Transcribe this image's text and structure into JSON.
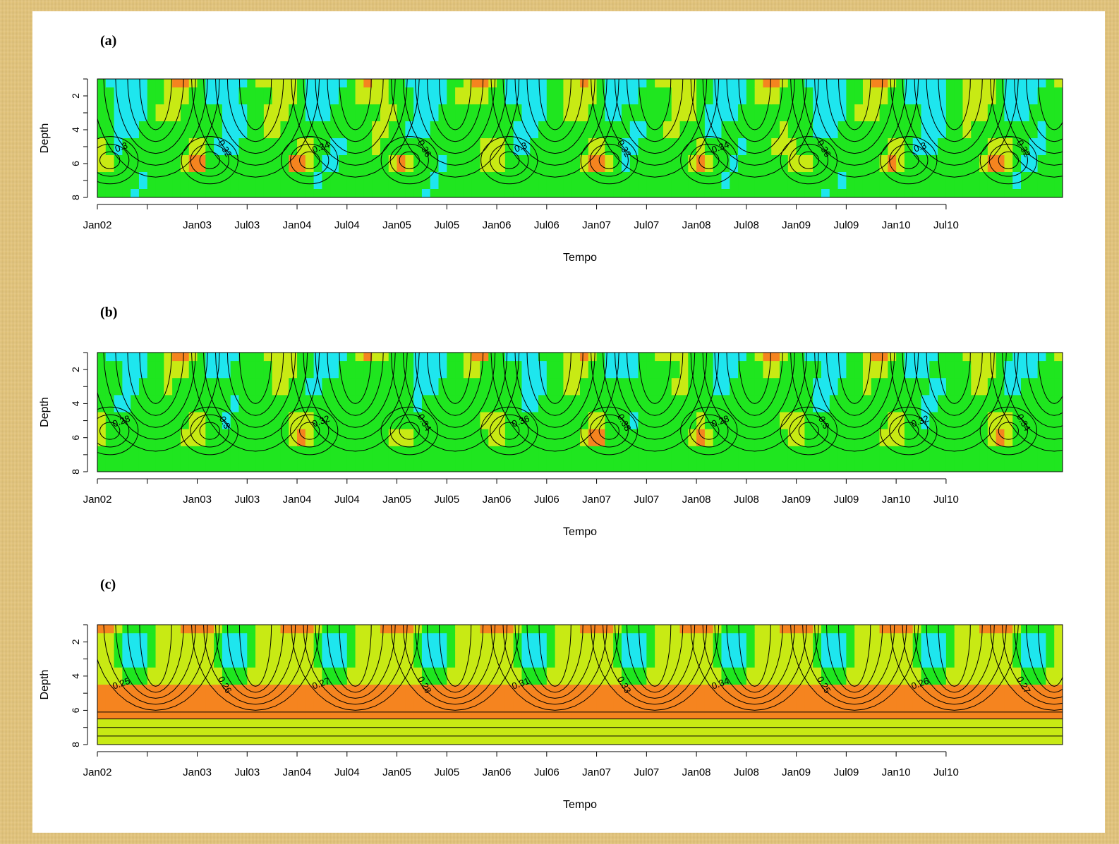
{
  "colors": {
    "frame_bg": "#e3c47a",
    "paper": "#ffffff"
  },
  "chart_data": [
    {
      "type": "heatmap",
      "panel": "(a)",
      "xlabel": "Tempo",
      "ylabel": "Depth",
      "x_ticks": [
        "Jan02",
        "Jan03",
        "Jul03",
        "Jan04",
        "Jul04",
        "Jan05",
        "Jul05",
        "Jan06",
        "Jul06",
        "Jan07",
        "Jul07",
        "Jan08",
        "Jul08",
        "Jan09",
        "Jul09",
        "Jan10",
        "Jul10"
      ],
      "x_tick_months": [
        0,
        12,
        18,
        24,
        30,
        36,
        42,
        48,
        54,
        60,
        66,
        72,
        78,
        84,
        90,
        96,
        102
      ],
      "unlabeled_tick_months": [
        6
      ],
      "xlim_months": [
        0,
        116
      ],
      "y_ticks": [
        2,
        4,
        6,
        8
      ],
      "ylim": [
        8,
        1
      ],
      "color_classes": [
        {
          "max": 0.3,
          "color": "#f5841f"
        },
        {
          "max": 0.32,
          "color": "#c8ea14"
        },
        {
          "max": 0.345,
          "color": "#1fe61f"
        },
        {
          "max": 1,
          "color": "#1ee6ee"
        }
      ],
      "contour_labels": [
        "0.3",
        "0.32",
        "0.34",
        "0.36"
      ],
      "cycle": {
        "base": 0.335,
        "amp_near_surface": 0.035,
        "anomaly_depth": 5.8,
        "anomaly_value": -0.045
      }
    },
    {
      "type": "heatmap",
      "panel": "(b)",
      "xlabel": "Tempo",
      "ylabel": "Depth",
      "x_ticks": [
        "Jan02",
        "Jan03",
        "Jul03",
        "Jan04",
        "Jul04",
        "Jan05",
        "Jul05",
        "Jan06",
        "Jul06",
        "Jan07",
        "Jul07",
        "Jan08",
        "Jul08",
        "Jan09",
        "Jul09",
        "Jan10",
        "Jul10"
      ],
      "x_tick_months": [
        0,
        12,
        18,
        24,
        30,
        36,
        42,
        48,
        54,
        60,
        66,
        72,
        78,
        84,
        90,
        96,
        102
      ],
      "unlabeled_tick_months": [
        6
      ],
      "xlim_months": [
        0,
        116
      ],
      "y_ticks": [
        2,
        4,
        6,
        8
      ],
      "ylim": [
        8,
        1
      ],
      "color_classes": [
        {
          "max": 0.295,
          "color": "#f5841f"
        },
        {
          "max": 0.31,
          "color": "#c8ea14"
        },
        {
          "max": 0.345,
          "color": "#1fe61f"
        },
        {
          "max": 1,
          "color": "#1ee6ee"
        }
      ],
      "contour_labels": [
        "0.28",
        "0.3",
        "0.32",
        "0.34",
        "0.36",
        "0.38"
      ],
      "cycle": {
        "base": 0.33,
        "amp_near_surface": 0.035,
        "anomaly_depth": 5.6,
        "anomaly_value": -0.045
      }
    },
    {
      "type": "heatmap",
      "panel": "(c)",
      "xlabel": "Tempo",
      "ylabel": "Depth",
      "x_ticks": [
        "Jan02",
        "Jan03",
        "Jul03",
        "Jan04",
        "Jul04",
        "Jan05",
        "Jul05",
        "Jan06",
        "Jul06",
        "Jan07",
        "Jul07",
        "Jan08",
        "Jul08",
        "Jan09",
        "Jul09",
        "Jan10",
        "Jul10"
      ],
      "x_tick_months": [
        0,
        12,
        18,
        24,
        30,
        36,
        42,
        48,
        54,
        60,
        66,
        72,
        78,
        84,
        90,
        96,
        102
      ],
      "unlabeled_tick_months": [
        6
      ],
      "xlim_months": [
        0,
        116
      ],
      "y_ticks": [
        2,
        4,
        6,
        8
      ],
      "ylim": [
        8,
        1
      ],
      "color_classes": [
        {
          "max": 0.26,
          "color": "#f5841f"
        },
        {
          "max": 0.285,
          "color": "#c8ea14"
        },
        {
          "max": 0.31,
          "color": "#1fe61f"
        },
        {
          "max": 1,
          "color": "#1ee6ee"
        }
      ],
      "contour_labels": [
        "0.25",
        "0.26",
        "0.27",
        "0.28",
        "0.31",
        "0.33",
        "0.34"
      ],
      "cycle": {
        "base": 0.27,
        "amp_near_surface": 0.07,
        "deep_layer": [
          0.25,
          0.27
        ]
      }
    }
  ]
}
